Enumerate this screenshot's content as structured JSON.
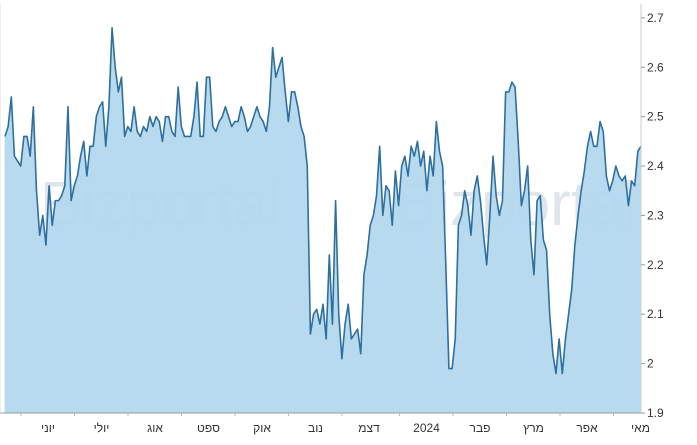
{
  "chart_data": {
    "type": "area",
    "x_labels": [
      "יוני",
      "יולי",
      "אוג",
      "ספט",
      "אוק",
      "נוב",
      "דצמ",
      "2024",
      "פבר",
      "מרץ",
      "אפר",
      "מאי"
    ],
    "y_ticks": [
      1.9,
      2,
      2.1,
      2.2,
      2.3,
      2.4,
      2.5,
      2.6,
      2.7
    ],
    "ylim": [
      1.9,
      2.72
    ],
    "y_axis_side": "right",
    "grid": false,
    "legend": "none",
    "watermark": "Bizportal",
    "colors": {
      "line": "#2e6f9e",
      "fill": "#b9dcf0",
      "axis": "#999999"
    },
    "series": [
      {
        "values": [
          2.46,
          2.48,
          2.54,
          2.42,
          2.41,
          2.4,
          2.46,
          2.46,
          2.42,
          2.52,
          2.35,
          2.26,
          2.3,
          2.24,
          2.36,
          2.28,
          2.33,
          2.33,
          2.34,
          2.36,
          2.52,
          2.33,
          2.36,
          2.38,
          2.42,
          2.45,
          2.38,
          2.44,
          2.44,
          2.5,
          2.52,
          2.53,
          2.44,
          2.52,
          2.68,
          2.6,
          2.55,
          2.58,
          2.46,
          2.48,
          2.47,
          2.52,
          2.47,
          2.46,
          2.48,
          2.47,
          2.5,
          2.48,
          2.5,
          2.49,
          2.45,
          2.5,
          2.5,
          2.47,
          2.46,
          2.56,
          2.48,
          2.46,
          2.46,
          2.46,
          2.5,
          2.57,
          2.46,
          2.46,
          2.58,
          2.58,
          2.48,
          2.47,
          2.49,
          2.5,
          2.52,
          2.5,
          2.48,
          2.49,
          2.49,
          2.52,
          2.5,
          2.47,
          2.48,
          2.5,
          2.52,
          2.5,
          2.49,
          2.47,
          2.52,
          2.64,
          2.58,
          2.6,
          2.62,
          2.55,
          2.49,
          2.55,
          2.55,
          2.52,
          2.48,
          2.46,
          2.4,
          2.06,
          2.1,
          2.11,
          2.08,
          2.12,
          2.05,
          2.22,
          2.08,
          2.33,
          2.1,
          2.01,
          2.08,
          2.12,
          2.05,
          2.06,
          2.07,
          2.02,
          2.18,
          2.22,
          2.28,
          2.3,
          2.34,
          2.44,
          2.3,
          2.36,
          2.35,
          2.28,
          2.39,
          2.32,
          2.4,
          2.42,
          2.38,
          2.44,
          2.42,
          2.45,
          2.4,
          2.43,
          2.35,
          2.42,
          2.38,
          2.49,
          2.43,
          2.4,
          2.2,
          1.99,
          1.99,
          2.05,
          2.28,
          2.3,
          2.35,
          2.32,
          2.26,
          2.35,
          2.38,
          2.33,
          2.26,
          2.2,
          2.3,
          2.42,
          2.34,
          2.3,
          2.33,
          2.55,
          2.55,
          2.57,
          2.56,
          2.45,
          2.32,
          2.35,
          2.4,
          2.25,
          2.18,
          2.33,
          2.34,
          2.25,
          2.23,
          2.1,
          2.02,
          1.98,
          2.05,
          1.98,
          2.05,
          2.1,
          2.15,
          2.24,
          2.3,
          2.35,
          2.39,
          2.44,
          2.47,
          2.44,
          2.44,
          2.49,
          2.47,
          2.38,
          2.35,
          2.37,
          2.4,
          2.38,
          2.37,
          2.38,
          2.32,
          2.37,
          2.36,
          2.43,
          2.44
        ]
      }
    ]
  }
}
